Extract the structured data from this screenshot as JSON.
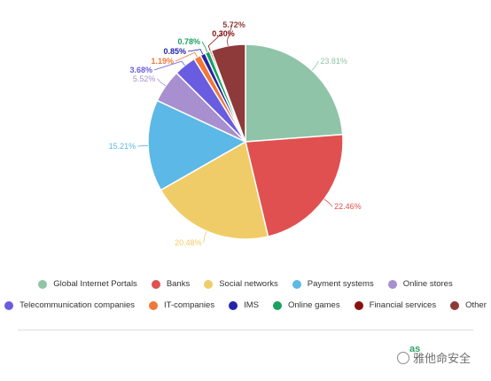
{
  "chart_data": {
    "type": "pie",
    "title": "",
    "slices": [
      {
        "label": "Global Internet Portals",
        "value": 23.81,
        "pct_text": "23.81%",
        "color": "#8fc4a8"
      },
      {
        "label": "Banks",
        "value": 22.46,
        "pct_text": "22.46%",
        "color": "#e05050"
      },
      {
        "label": "Social networks",
        "value": 20.48,
        "pct_text": "20.48%",
        "color": "#f0cc68"
      },
      {
        "label": "Payment systems",
        "value": 15.21,
        "pct_text": "15.21%",
        "color": "#5cb8e6"
      },
      {
        "label": "Online stores",
        "value": 5.52,
        "pct_text": "5.52%",
        "color": "#a78fd0"
      },
      {
        "label": "Telecommunication companies",
        "value": 3.68,
        "pct_text": "3.68%",
        "color": "#6a5ce0"
      },
      {
        "label": "IT-companies",
        "value": 1.19,
        "pct_text": "1.19%",
        "color": "#f07838"
      },
      {
        "label": "IMS",
        "value": 0.85,
        "pct_text": "0.85%",
        "color": "#2424a8"
      },
      {
        "label": "Online games",
        "value": 0.78,
        "pct_text": "0.78%",
        "color": "#1aa060"
      },
      {
        "label": "Financial services",
        "value": 0.3,
        "pct_text": "0.30%",
        "color": "#8a1010"
      },
      {
        "label": "Other",
        "value": 5.72,
        "pct_text": "5.72%",
        "color": "#8e3a3a"
      }
    ],
    "legend_position": "bottom"
  },
  "brand_text": "as",
  "watermark_text": "雅他命安全",
  "watermark_icon": "wechat-icon"
}
